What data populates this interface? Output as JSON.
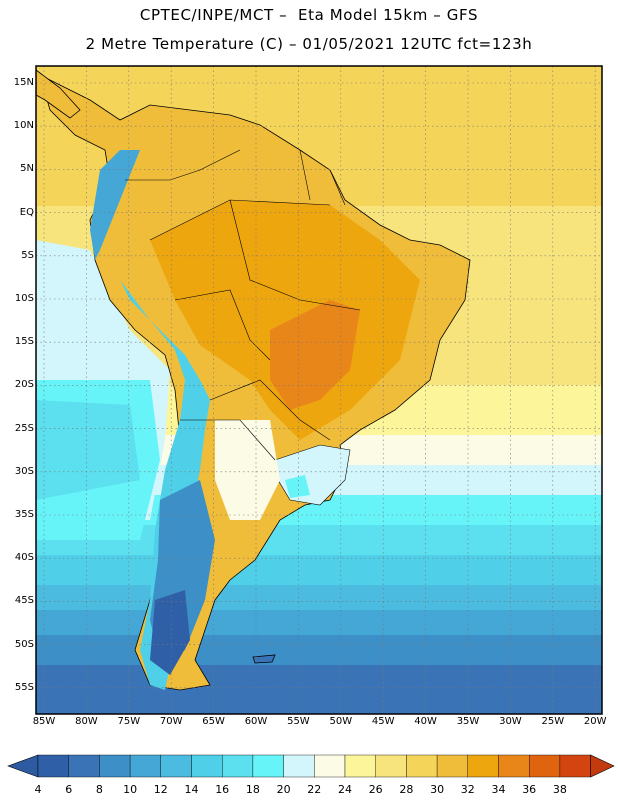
{
  "header": {
    "line1": "CPTEC/INPE/MCT –  Eta Model 15km – GFS",
    "line2": "2 Metre Temperature (C) – 01/05/2021 12UTC fct=123h"
  },
  "map": {
    "lat_labels": [
      "15N",
      "10N",
      "5N",
      "EQ",
      "5S",
      "10S",
      "15S",
      "20S",
      "25S",
      "30S",
      "35S",
      "40S",
      "45S",
      "50S",
      "55S"
    ],
    "lon_labels": [
      "85W",
      "80W",
      "75W",
      "70W",
      "65W",
      "60W",
      "55W",
      "50W",
      "45W",
      "40W",
      "35W",
      "30W",
      "25W",
      "20W"
    ]
  },
  "colorbar": {
    "labels": [
      "4",
      "6",
      "8",
      "10",
      "12",
      "14",
      "16",
      "18",
      "20",
      "22",
      "24",
      "26",
      "28",
      "30",
      "32",
      "34",
      "36",
      "38"
    ],
    "colors": [
      "#2f5fa6",
      "#3b74b6",
      "#3d90c7",
      "#44a7d5",
      "#4bbbe0",
      "#4fd0e8",
      "#5ce0ef",
      "#66f4f8",
      "#d2f6fb",
      "#fcfbe6",
      "#fcf59a",
      "#f8e47c",
      "#f5d45a",
      "#f0bd3a",
      "#eea60f",
      "#e8861a",
      "#e06310",
      "#d24510"
    ],
    "under_color": "#2d5aa0",
    "over_color": "#c23a0f"
  }
}
